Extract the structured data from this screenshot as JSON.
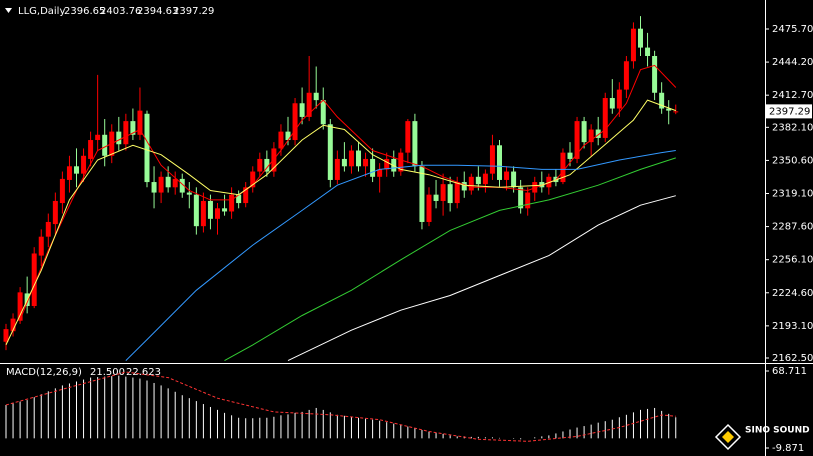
{
  "chart_data": {
    "type": "candlestick",
    "symbol": "LLG,Daily",
    "up_color": "#ff0000",
    "down_color": "#98fb98",
    "series": {
      "open": [
        2178,
        2188,
        2198,
        2224,
        2212,
        2260,
        2278,
        2290,
        2310,
        2332,
        2345,
        2338,
        2352,
        2370,
        2375,
        2355,
        2378,
        2366,
        2388,
        2375,
        2395,
        2330,
        2320,
        2335,
        2325,
        2333,
        2320,
        2318,
        2288,
        2312,
        2295,
        2305,
        2302,
        2318,
        2310,
        2325,
        2340,
        2352,
        2340,
        2362,
        2378,
        2370,
        2405,
        2392,
        2415,
        2408,
        2385,
        2332,
        2352,
        2345,
        2360,
        2345,
        2352,
        2335,
        2342,
        2352,
        2340,
        2358,
        2388,
        2345,
        2292,
        2318,
        2312,
        2328,
        2310,
        2330,
        2322,
        2335,
        2328,
        2338,
        2365,
        2332,
        2340,
        2325,
        2305,
        2320,
        2330,
        2325,
        2335,
        2330,
        2358,
        2352,
        2388,
        2368,
        2380,
        2372,
        2410,
        2400,
        2418,
        2445,
        2476,
        2458,
        2450,
        2415,
        2400,
        2396.65
      ],
      "high": [
        2195,
        2205,
        2230,
        2240,
        2268,
        2285,
        2300,
        2320,
        2340,
        2355,
        2362,
        2362,
        2378,
        2432,
        2390,
        2385,
        2392,
        2395,
        2400,
        2420,
        2398,
        2345,
        2340,
        2345,
        2340,
        2338,
        2330,
        2325,
        2320,
        2318,
        2310,
        2318,
        2325,
        2322,
        2330,
        2345,
        2358,
        2360,
        2368,
        2385,
        2392,
        2410,
        2420,
        2450,
        2440,
        2420,
        2390,
        2360,
        2368,
        2365,
        2368,
        2358,
        2362,
        2348,
        2358,
        2360,
        2362,
        2390,
        2395,
        2350,
        2325,
        2332,
        2338,
        2335,
        2335,
        2340,
        2338,
        2345,
        2342,
        2375,
        2370,
        2345,
        2345,
        2332,
        2325,
        2335,
        2340,
        2338,
        2342,
        2362,
        2368,
        2392,
        2392,
        2385,
        2392,
        2415,
        2428,
        2425,
        2450,
        2482,
        2488,
        2472,
        2455,
        2425,
        2408,
        2403.76
      ],
      "low": [
        2170,
        2183,
        2195,
        2205,
        2210,
        2250,
        2268,
        2280,
        2300,
        2320,
        2325,
        2330,
        2345,
        2360,
        2345,
        2348,
        2360,
        2360,
        2370,
        2370,
        2325,
        2305,
        2310,
        2320,
        2318,
        2315,
        2305,
        2280,
        2282,
        2285,
        2280,
        2298,
        2295,
        2305,
        2306,
        2320,
        2335,
        2335,
        2335,
        2355,
        2365,
        2365,
        2385,
        2388,
        2400,
        2380,
        2325,
        2328,
        2340,
        2338,
        2340,
        2335,
        2330,
        2320,
        2335,
        2335,
        2336,
        2348,
        2340,
        2285,
        2288,
        2305,
        2298,
        2302,
        2305,
        2315,
        2318,
        2322,
        2320,
        2332,
        2325,
        2322,
        2320,
        2300,
        2298,
        2312,
        2320,
        2318,
        2326,
        2328,
        2345,
        2348,
        2362,
        2355,
        2365,
        2368,
        2395,
        2392,
        2410,
        2438,
        2450,
        2440,
        2408,
        2395,
        2385,
        2394.63
      ],
      "close": [
        2190,
        2200,
        2225,
        2212,
        2262,
        2278,
        2292,
        2312,
        2333,
        2345,
        2338,
        2355,
        2370,
        2375,
        2355,
        2378,
        2366,
        2388,
        2375,
        2398,
        2330,
        2320,
        2335,
        2325,
        2333,
        2320,
        2318,
        2288,
        2312,
        2295,
        2305,
        2302,
        2318,
        2310,
        2325,
        2340,
        2352,
        2340,
        2362,
        2378,
        2370,
        2405,
        2392,
        2415,
        2408,
        2385,
        2332,
        2352,
        2345,
        2360,
        2345,
        2352,
        2335,
        2342,
        2352,
        2340,
        2358,
        2388,
        2345,
        2292,
        2318,
        2312,
        2328,
        2310,
        2330,
        2322,
        2335,
        2328,
        2338,
        2365,
        2332,
        2340,
        2325,
        2305,
        2320,
        2330,
        2325,
        2335,
        2330,
        2358,
        2352,
        2388,
        2368,
        2380,
        2372,
        2410,
        2400,
        2418,
        2445,
        2476,
        2458,
        2450,
        2415,
        2400,
        2398,
        2397.29
      ]
    },
    "moving_averages": [
      {
        "color": "#ff0000",
        "x": [
          2,
          6,
          10,
          13,
          16,
          19,
          22,
          26,
          29,
          32,
          35,
          39,
          42,
          45,
          47,
          52,
          56,
          59,
          62,
          66,
          70,
          74,
          78,
          82,
          85,
          88,
          90,
          92,
          95
        ],
        "values": [
          2199,
          2265,
          2322,
          2360,
          2370,
          2380,
          2346,
          2322,
          2313,
          2313,
          2327,
          2360,
          2389,
          2408,
          2392,
          2360,
          2351,
          2345,
          2335,
          2325,
          2325,
          2322,
          2332,
          2365,
          2380,
          2405,
          2437,
          2441,
          2420
        ]
      },
      {
        "color": "#ffff66",
        "x": [
          0,
          5,
          9,
          13,
          18,
          22,
          26,
          29,
          33,
          37,
          42,
          45,
          48,
          52,
          56,
          60,
          65,
          70,
          76,
          80,
          84,
          89,
          91,
          95
        ],
        "values": [
          2175,
          2246,
          2313,
          2351,
          2365,
          2356,
          2337,
          2322,
          2318,
          2337,
          2370,
          2384,
          2380,
          2356,
          2342,
          2337,
          2327,
          2325,
          2327,
          2337,
          2360,
          2389,
          2408,
          2398
        ]
      },
      {
        "color": "#3399ff",
        "x": [
          17,
          20,
          27,
          35,
          42,
          47,
          53,
          59,
          64,
          70,
          76,
          81,
          87,
          93,
          95
        ],
        "values": [
          2160,
          2180,
          2227,
          2270,
          2303,
          2327,
          2342,
          2346,
          2346,
          2345,
          2342,
          2342,
          2351,
          2358,
          2360
        ]
      },
      {
        "color": "#33cc33",
        "x": [
          31,
          35,
          42,
          49,
          56,
          63,
          70,
          77,
          84,
          90,
          95
        ],
        "values": [
          2160,
          2175,
          2203,
          2227,
          2256,
          2284,
          2303,
          2313,
          2327,
          2342,
          2353
        ]
      },
      {
        "color": "#ffffff",
        "x": [
          40,
          49,
          56,
          63,
          70,
          77,
          84,
          90,
          95
        ],
        "values": [
          2160,
          2189,
          2208,
          2222,
          2241,
          2260,
          2289,
          2308,
          2317
        ]
      }
    ],
    "ylim": [
      2158.7,
      2501.4
    ],
    "yticks": [
      {
        "value": 2475.7,
        "label": "2475.70"
      },
      {
        "value": 2444.2,
        "label": "2444.20"
      },
      {
        "value": 2412.7,
        "label": "2412.70"
      },
      {
        "value": 2382.1,
        "label": "2382.10"
      },
      {
        "value": 2350.6,
        "label": "2350.60"
      },
      {
        "value": 2319.1,
        "label": "2319.10"
      },
      {
        "value": 2287.6,
        "label": "2287.60"
      },
      {
        "value": 2256.1,
        "label": "2256.10"
      },
      {
        "value": 2224.6,
        "label": "2224.60"
      },
      {
        "value": 2193.1,
        "label": "2193.10"
      },
      {
        "value": 2162.5,
        "label": "2162.50"
      }
    ],
    "macd": {
      "type": "macd",
      "title": "MACD(12,26,9)",
      "current": [
        {
          "value": 21.5,
          "label": "21.500"
        },
        {
          "value": 22.623,
          "label": "22.623"
        }
      ],
      "histogram": {
        "color": "#ffffff",
        "values": [
          34,
          35.5,
          37.5,
          39,
          42,
          45,
          48,
          51,
          54,
          56,
          58,
          60,
          62,
          62.5,
          63,
          63.5,
          64,
          63,
          62,
          61,
          59,
          56.5,
          54,
          51,
          47.5,
          44,
          41,
          38,
          35,
          32,
          29,
          26,
          23.5,
          21,
          20.5,
          20.5,
          21,
          21,
          22,
          23.5,
          24.5,
          26,
          27,
          29,
          31,
          29,
          26.5,
          24,
          23,
          22,
          21,
          20,
          19,
          18,
          16.5,
          15,
          14,
          12,
          10.5,
          8.5,
          7,
          5.5,
          4.5,
          3,
          2,
          2,
          1.5,
          1.5,
          1,
          1,
          0.5,
          0,
          -0.5,
          -1,
          0,
          1,
          2,
          3,
          5,
          7,
          9,
          11,
          12.5,
          14,
          16,
          17.5,
          19,
          21.5,
          24,
          26.5,
          29,
          30,
          31,
          28,
          25,
          21.5
        ]
      },
      "signal": {
        "color": "#ff3333",
        "x": [
          0,
          8,
          17,
          23,
          30,
          38,
          46,
          53,
          60,
          67,
          74,
          81,
          87,
          93,
          95
        ],
        "values": [
          34,
          50,
          67.7,
          62,
          41,
          27,
          24,
          19,
          7,
          -1,
          -3,
          2,
          11,
          23.8,
          22.623
        ]
      },
      "ylim": [
        -9.871,
        68.711
      ],
      "yticks": [
        68.711,
        -9.871
      ]
    },
    "watermark": "SINO SOUND"
  }
}
